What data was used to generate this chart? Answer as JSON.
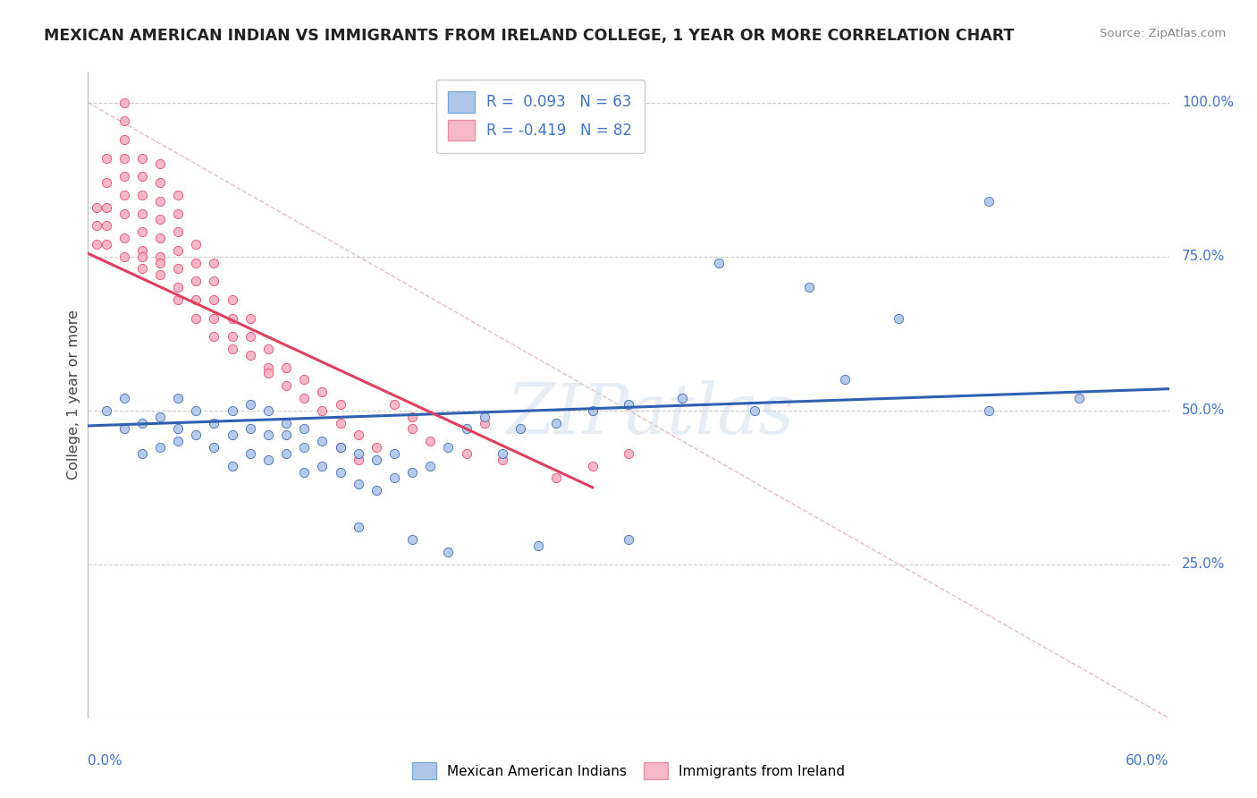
{
  "title": "MEXICAN AMERICAN INDIAN VS IMMIGRANTS FROM IRELAND COLLEGE, 1 YEAR OR MORE CORRELATION CHART",
  "source": "Source: ZipAtlas.com",
  "xlim": [
    0.0,
    0.6
  ],
  "ylim": [
    0.0,
    1.05
  ],
  "legend1_label": "R =  0.093   N = 63",
  "legend2_label": "R = -0.419   N = 82",
  "legend1_color": "#aec6e8",
  "legend2_color": "#f4b8c8",
  "blue_dot_color": "#aec6e8",
  "pink_dot_color": "#f4b0c4",
  "blue_line_color": "#3060b0",
  "pink_line_color": "#e04060",
  "diagonal_color": "#e0b0b8",
  "watermark": "ZIPatlas",
  "background_color": "#ffffff",
  "blue_trend_x": [
    0.0,
    0.6
  ],
  "blue_trend_y": [
    0.475,
    0.535
  ],
  "pink_trend_x": [
    0.0,
    0.28
  ],
  "pink_trend_y": [
    0.755,
    0.375
  ],
  "blue_x_data": [
    0.01,
    0.02,
    0.02,
    0.03,
    0.03,
    0.04,
    0.04,
    0.05,
    0.05,
    0.05,
    0.06,
    0.06,
    0.07,
    0.07,
    0.08,
    0.08,
    0.08,
    0.09,
    0.09,
    0.09,
    0.1,
    0.1,
    0.1,
    0.11,
    0.11,
    0.11,
    0.12,
    0.12,
    0.12,
    0.13,
    0.13,
    0.14,
    0.14,
    0.15,
    0.15,
    0.16,
    0.16,
    0.17,
    0.17,
    0.18,
    0.19,
    0.2,
    0.21,
    0.22,
    0.23,
    0.24,
    0.26,
    0.28,
    0.3,
    0.33,
    0.37,
    0.42,
    0.5,
    0.5,
    0.55,
    0.35,
    0.4,
    0.45,
    0.3,
    0.25,
    0.2,
    0.18,
    0.15
  ],
  "blue_y_data": [
    0.5,
    0.47,
    0.52,
    0.43,
    0.48,
    0.44,
    0.49,
    0.45,
    0.47,
    0.52,
    0.46,
    0.5,
    0.44,
    0.48,
    0.41,
    0.46,
    0.5,
    0.43,
    0.47,
    0.51,
    0.42,
    0.46,
    0.5,
    0.43,
    0.46,
    0.48,
    0.4,
    0.44,
    0.47,
    0.41,
    0.45,
    0.4,
    0.44,
    0.38,
    0.43,
    0.37,
    0.42,
    0.39,
    0.43,
    0.4,
    0.41,
    0.44,
    0.47,
    0.49,
    0.43,
    0.47,
    0.48,
    0.5,
    0.51,
    0.52,
    0.5,
    0.55,
    0.84,
    0.5,
    0.52,
    0.74,
    0.7,
    0.65,
    0.29,
    0.28,
    0.27,
    0.29,
    0.31
  ],
  "pink_x_data": [
    0.005,
    0.005,
    0.005,
    0.01,
    0.01,
    0.01,
    0.01,
    0.01,
    0.02,
    0.02,
    0.02,
    0.02,
    0.02,
    0.02,
    0.02,
    0.02,
    0.02,
    0.03,
    0.03,
    0.03,
    0.03,
    0.03,
    0.03,
    0.03,
    0.03,
    0.04,
    0.04,
    0.04,
    0.04,
    0.04,
    0.04,
    0.04,
    0.04,
    0.05,
    0.05,
    0.05,
    0.05,
    0.05,
    0.05,
    0.05,
    0.06,
    0.06,
    0.06,
    0.06,
    0.06,
    0.07,
    0.07,
    0.07,
    0.07,
    0.07,
    0.08,
    0.08,
    0.08,
    0.08,
    0.09,
    0.09,
    0.09,
    0.1,
    0.1,
    0.1,
    0.11,
    0.11,
    0.12,
    0.12,
    0.13,
    0.13,
    0.14,
    0.14,
    0.15,
    0.16,
    0.17,
    0.18,
    0.18,
    0.19,
    0.21,
    0.22,
    0.23,
    0.26,
    0.28,
    0.3,
    0.14,
    0.15
  ],
  "pink_y_data": [
    0.77,
    0.8,
    0.83,
    0.77,
    0.8,
    0.83,
    0.87,
    0.91,
    0.75,
    0.78,
    0.82,
    0.85,
    0.88,
    0.91,
    0.94,
    0.97,
    1.0,
    0.73,
    0.76,
    0.79,
    0.82,
    0.85,
    0.88,
    0.91,
    0.75,
    0.72,
    0.75,
    0.78,
    0.81,
    0.84,
    0.87,
    0.9,
    0.74,
    0.7,
    0.73,
    0.76,
    0.79,
    0.82,
    0.85,
    0.68,
    0.68,
    0.71,
    0.74,
    0.77,
    0.65,
    0.65,
    0.68,
    0.71,
    0.74,
    0.62,
    0.62,
    0.65,
    0.68,
    0.6,
    0.59,
    0.62,
    0.65,
    0.57,
    0.6,
    0.56,
    0.54,
    0.57,
    0.52,
    0.55,
    0.5,
    0.53,
    0.48,
    0.51,
    0.46,
    0.44,
    0.51,
    0.49,
    0.47,
    0.45,
    0.43,
    0.48,
    0.42,
    0.39,
    0.41,
    0.43,
    0.44,
    0.42
  ]
}
